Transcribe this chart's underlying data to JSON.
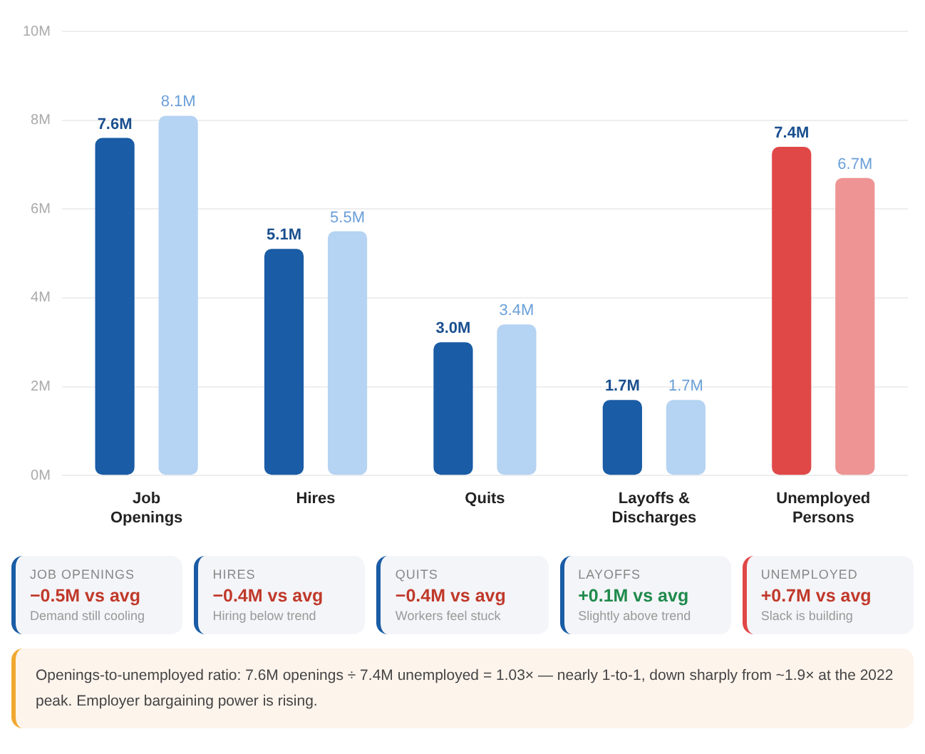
{
  "chart_data": [
    {
      "type": "bar",
      "categories": [
        "Job Openings",
        "Hires",
        "Quits",
        "Layoffs & Discharges",
        "Unemployed Persons"
      ],
      "series": [
        {
          "colors": [
            "#1a5ca5",
            "#1a5ca5",
            "#1a5ca5",
            "#1a5ca5",
            "#e04848"
          ],
          "values": [
            7.6,
            5.1,
            3.0,
            1.7,
            7.4
          ],
          "value_labels": [
            "7.6M",
            "5.1M",
            "3.0M",
            "1.7M",
            "7.4M"
          ]
        },
        {
          "colors": [
            "#b5d3f2",
            "#b5d3f2",
            "#b5d3f2",
            "#b5d3f2",
            "#ee9494"
          ],
          "values": [
            8.1,
            5.5,
            3.4,
            1.7,
            6.7
          ],
          "value_labels": [
            "8.1M",
            "5.5M",
            "3.4M",
            "1.7M",
            "6.7M"
          ]
        }
      ],
      "ylim": [
        0,
        10
      ],
      "yticks": [
        {
          "value": 0,
          "label": "0M"
        },
        {
          "value": 2,
          "label": "2M"
        },
        {
          "value": 4,
          "label": "4M"
        },
        {
          "value": 6,
          "label": "6M"
        },
        {
          "value": 8,
          "label": "8M"
        },
        {
          "value": 10,
          "label": "10M"
        }
      ],
      "grid": "y",
      "legend": false
    },
    {
      "type": "other",
      "annotations": [
        "JOB OPENINGS",
        "−0.5M vs avg",
        "Demand still cooling",
        "HIRES",
        "−0.4M vs avg",
        "Hiring below trend",
        "QUITS",
        "−0.4M vs avg",
        "Workers feel stuck",
        "LAYOFFS",
        "+0.1M vs avg",
        "Slightly above trend",
        "UNEMPLOYED",
        "+0.7M vs avg",
        "Slack is building",
        "Openings-to-unemployed ratio: 7.6M openings ÷ 7.4M unemployed = 1.03× — nearly 1-to-1, down sharply from ~1.9× at the 2022 peak. Employer bargaining power is rising."
      ]
    }
  ]
}
